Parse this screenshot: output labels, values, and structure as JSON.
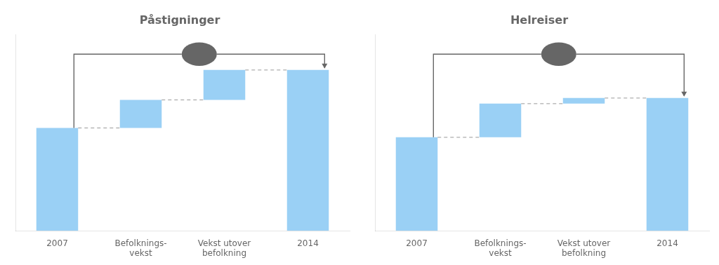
{
  "chart_data": [
    {
      "type": "waterfall",
      "title": "Påstigninger",
      "categories": [
        "2007",
        "Befolknings-\nvekst",
        "Vekst utover\nbefolkning",
        "2014"
      ],
      "values": [
        55,
        15,
        16,
        86
      ],
      "ylim": [
        0,
        105
      ],
      "tick_labels": "x",
      "grid": false
    },
    {
      "type": "waterfall",
      "title": "Helreiser",
      "categories": [
        "2007",
        "Befolknings-\nvekst",
        "Vekst utover\nbefolkning",
        "2014"
      ],
      "values": [
        50,
        18,
        3,
        71
      ],
      "ylim": [
        0,
        105
      ],
      "tick_labels": "x",
      "grid": false
    }
  ]
}
